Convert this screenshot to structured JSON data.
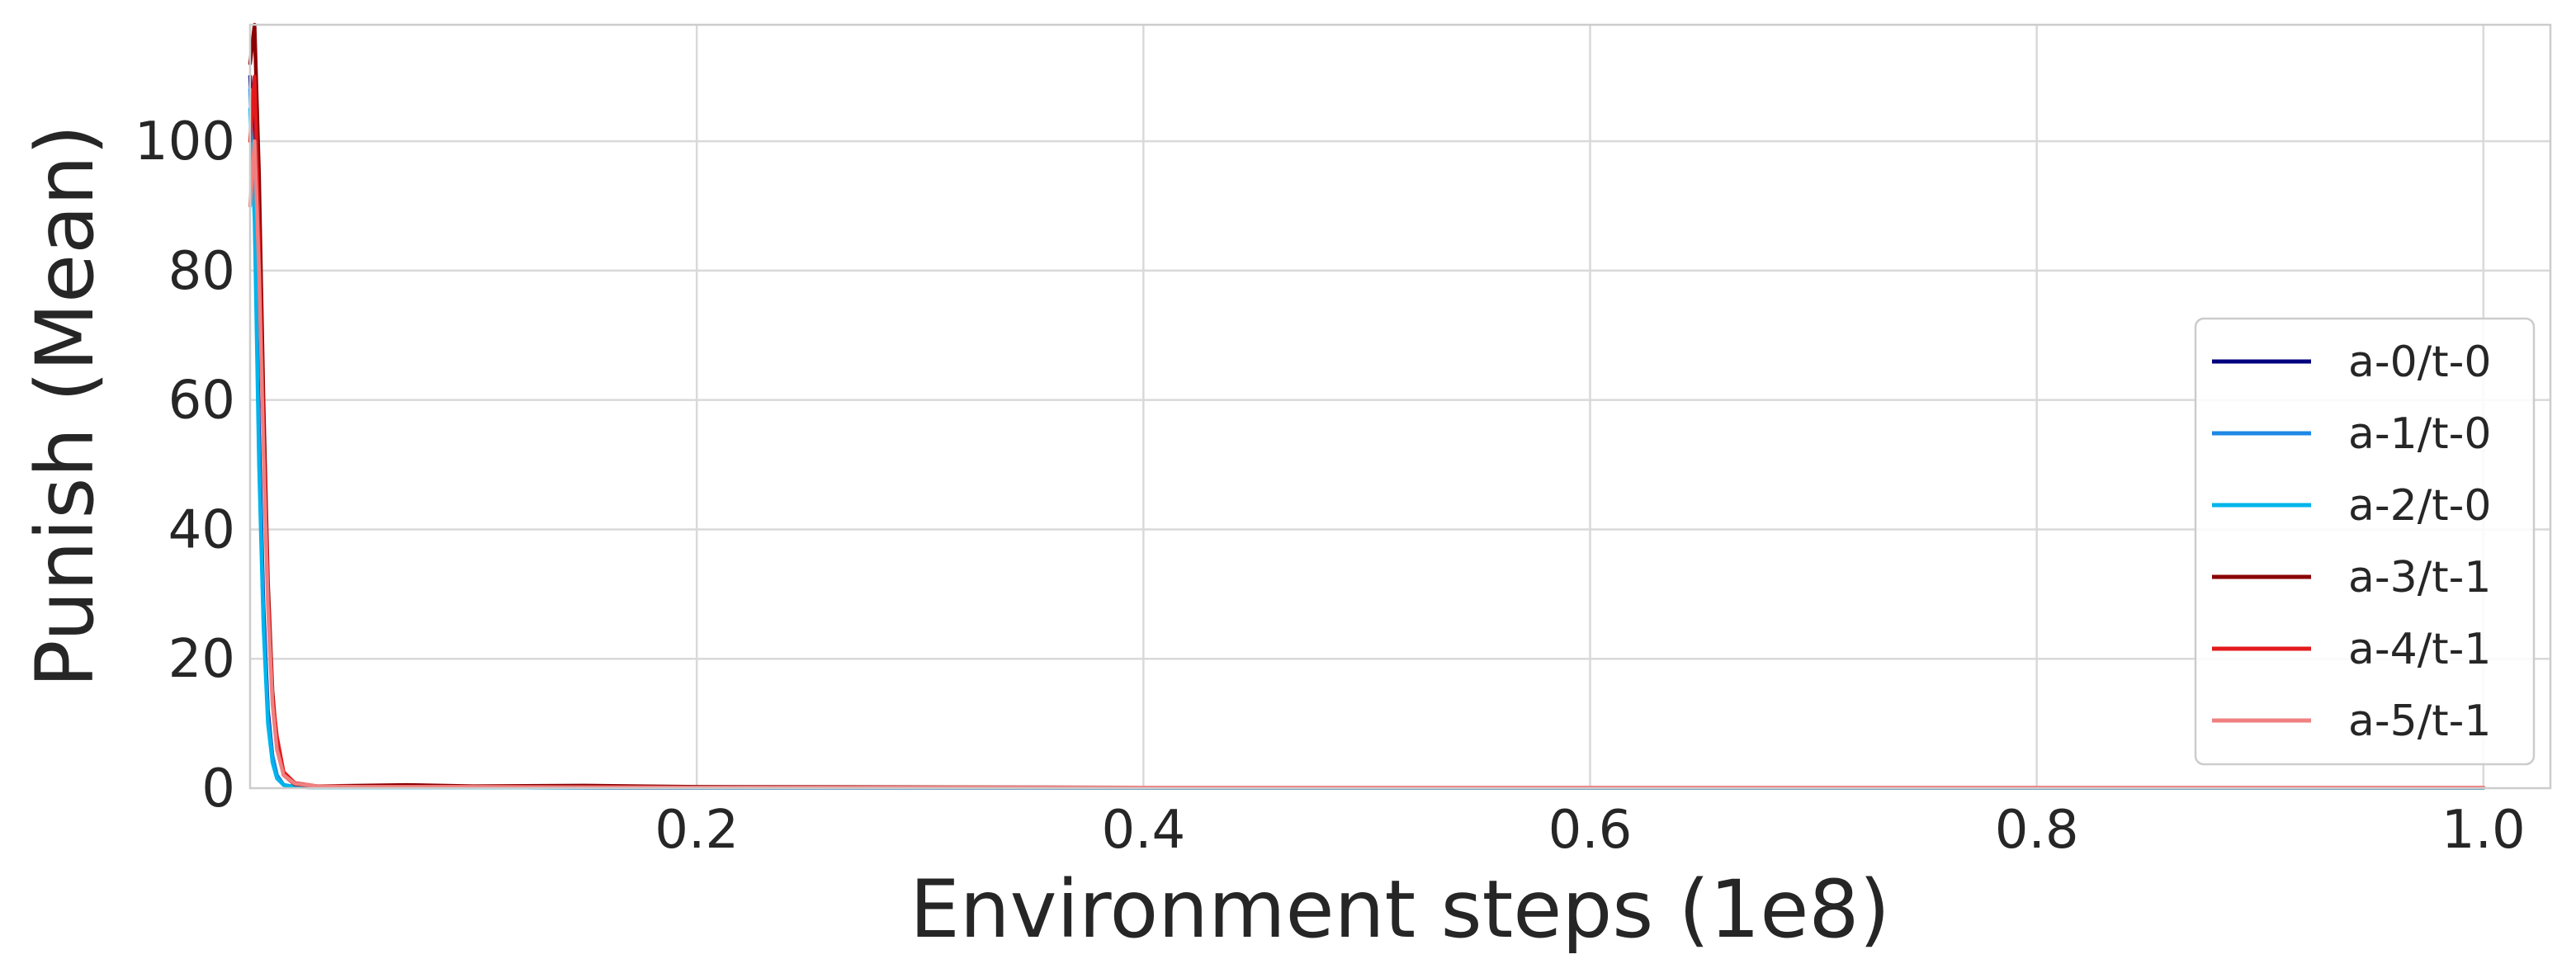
{
  "chart_data": {
    "type": "line",
    "xlabel": "Environment steps (1e8)",
    "ylabel": "Punish (Mean)",
    "xlim": [
      0.0,
      1.03
    ],
    "ylim": [
      0,
      118
    ],
    "xticks": [
      0.2,
      0.4,
      0.6,
      0.8,
      1.0
    ],
    "xtick_labels": [
      "0.2",
      "0.4",
      "0.6",
      "0.8",
      "1.0"
    ],
    "yticks": [
      0,
      20,
      40,
      60,
      80,
      100
    ],
    "ytick_labels": [
      "0",
      "20",
      "40",
      "60",
      "80",
      "100"
    ],
    "grid": true,
    "legend_position": "lower-right",
    "series": [
      {
        "name": "a-0/t-0",
        "color": "#00007f",
        "x": [
          0.0,
          0.002,
          0.004,
          0.006,
          0.008,
          0.01,
          0.012,
          0.015,
          0.02,
          0.03,
          0.05,
          0.1,
          0.2,
          0.4,
          0.6,
          0.8,
          1.0
        ],
        "y": [
          110,
          95,
          55,
          28,
          12,
          5,
          2,
          0.5,
          0.2,
          0.1,
          0.1,
          0.1,
          0.05,
          0.05,
          0.05,
          0.05,
          0.05
        ]
      },
      {
        "name": "a-1/t-0",
        "color": "#1e88e5",
        "x": [
          0.0,
          0.002,
          0.004,
          0.006,
          0.008,
          0.01,
          0.012,
          0.015,
          0.02,
          0.03,
          0.05,
          0.1,
          0.2,
          0.4,
          0.6,
          0.8,
          1.0
        ],
        "y": [
          108,
          90,
          52,
          26,
          11,
          5,
          2,
          0.5,
          0.2,
          0.1,
          0.1,
          0.1,
          0.05,
          0.05,
          0.05,
          0.05,
          0.05
        ]
      },
      {
        "name": "a-2/t-0",
        "color": "#00b4eb",
        "x": [
          0.0,
          0.002,
          0.004,
          0.006,
          0.008,
          0.01,
          0.012,
          0.015,
          0.02,
          0.03,
          0.05,
          0.1,
          0.2,
          0.4,
          0.6,
          0.8,
          1.0
        ],
        "y": [
          105,
          88,
          50,
          25,
          10,
          4,
          1.5,
          0.5,
          0.2,
          0.1,
          0.1,
          0.1,
          0.05,
          0.05,
          0.05,
          0.05,
          0.05
        ]
      },
      {
        "name": "a-3/t-1",
        "color": "#8b0000",
        "x": [
          0.0,
          0.002,
          0.004,
          0.006,
          0.008,
          0.01,
          0.012,
          0.015,
          0.02,
          0.03,
          0.05,
          0.07,
          0.1,
          0.15,
          0.2,
          0.4,
          0.6,
          0.8,
          1.0
        ],
        "y": [
          112,
          118,
          95,
          60,
          32,
          15,
          7,
          2,
          0.6,
          0.3,
          0.4,
          0.5,
          0.3,
          0.4,
          0.2,
          0.1,
          0.1,
          0.1,
          0.1
        ]
      },
      {
        "name": "a-4/t-1",
        "color": "#e31a1c",
        "x": [
          0.0,
          0.002,
          0.004,
          0.006,
          0.008,
          0.01,
          0.012,
          0.015,
          0.02,
          0.03,
          0.05,
          0.1,
          0.2,
          0.4,
          0.6,
          0.8,
          1.0
        ],
        "y": [
          100,
          110,
          85,
          55,
          30,
          14,
          8,
          2.5,
          0.8,
          0.3,
          0.2,
          0.2,
          0.1,
          0.1,
          0.1,
          0.1,
          0.1
        ]
      },
      {
        "name": "a-5/t-1",
        "color": "#f08080",
        "x": [
          0.0,
          0.002,
          0.004,
          0.006,
          0.008,
          0.01,
          0.012,
          0.015,
          0.02,
          0.03,
          0.05,
          0.1,
          0.2,
          0.4,
          0.6,
          0.8,
          1.0
        ],
        "y": [
          90,
          100,
          80,
          52,
          28,
          13,
          6,
          2,
          0.7,
          0.3,
          0.2,
          0.2,
          0.1,
          0.1,
          0.1,
          0.1,
          0.1
        ]
      }
    ]
  }
}
